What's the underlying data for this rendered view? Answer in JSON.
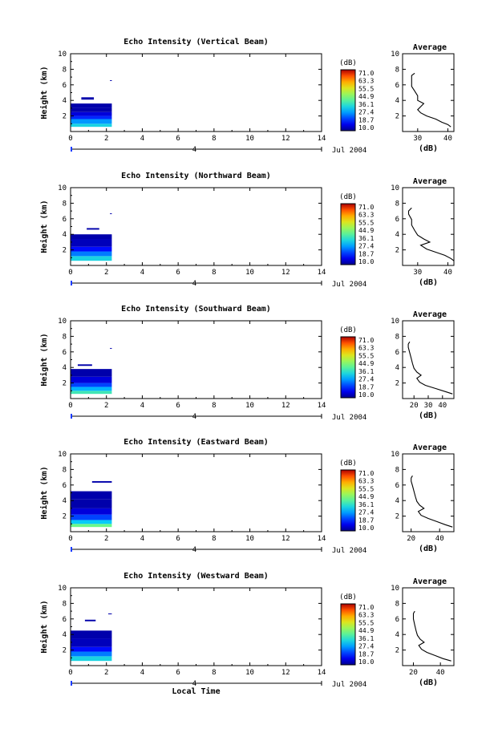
{
  "chart_data": [
    {
      "type": "heatmap",
      "title": "Echo Intensity (Vertical Beam)",
      "xlabel": "",
      "ylabel": "Height (km)",
      "xlim": [
        0,
        14
      ],
      "ylim": [
        0,
        10
      ],
      "x_ticks": [
        "0",
        "2",
        "4",
        "6",
        "8",
        "10",
        "12",
        "14"
      ],
      "y_ticks": [
        "2",
        "4",
        "6",
        "8",
        "10"
      ],
      "day_marker": "4",
      "date_label": "Jul 2004",
      "colorbar": {
        "unit": "(dB)",
        "ticks": [
          "71.0",
          "63.3",
          "55.5",
          "44.9",
          "36.1",
          "27.4",
          "18.7",
          "10.0"
        ]
      },
      "data_extent_hours": [
        0,
        2.3
      ],
      "cells": [
        {
          "t0": 0.0,
          "t1": 2.3,
          "h0": 0.6,
          "h1": 1.0,
          "db": 34
        },
        {
          "t0": 0.0,
          "t1": 2.3,
          "h0": 1.0,
          "h1": 1.6,
          "db": 28
        },
        {
          "t0": 0.0,
          "t1": 2.3,
          "h0": 1.6,
          "h1": 2.0,
          "db": 20
        },
        {
          "t0": 0.0,
          "t1": 2.3,
          "h0": 2.0,
          "h1": 2.5,
          "db": 15
        },
        {
          "t0": 0.0,
          "t1": 2.3,
          "h0": 2.5,
          "h1": 3.0,
          "db": 12
        },
        {
          "t0": 0.0,
          "t1": 2.3,
          "h0": 3.0,
          "h1": 3.6,
          "db": 12
        },
        {
          "t0": 0.6,
          "t1": 1.3,
          "h0": 4.1,
          "h1": 4.4,
          "db": 12
        },
        {
          "t0": 2.2,
          "t1": 2.3,
          "h0": 6.5,
          "h1": 6.6,
          "db": 12
        }
      ],
      "average": {
        "title": "Average",
        "xlabel": "(dB)",
        "xlim": [
          25,
          42
        ],
        "x_ticks": [
          "30",
          "40"
        ],
        "ylim": [
          0,
          10
        ],
        "y_ticks": [
          "2",
          "4",
          "6",
          "8",
          "10"
        ],
        "profile": {
          "db": [
            41,
            40,
            38,
            36,
            33,
            31,
            30,
            31,
            32,
            30,
            30,
            29,
            28,
            28,
            28,
            28,
            29
          ],
          "height": [
            0.6,
            0.9,
            1.2,
            1.6,
            2.0,
            2.4,
            2.8,
            3.2,
            3.6,
            4.0,
            4.6,
            5.2,
            5.8,
            6.3,
            6.8,
            7.2,
            7.5
          ]
        }
      }
    },
    {
      "type": "heatmap",
      "title": "Echo Intensity (Northward Beam)",
      "xlabel": "",
      "ylabel": "Height (km)",
      "xlim": [
        0,
        14
      ],
      "ylim": [
        0,
        10
      ],
      "x_ticks": [
        "0",
        "2",
        "4",
        "6",
        "8",
        "10",
        "12",
        "14"
      ],
      "y_ticks": [
        "2",
        "4",
        "6",
        "8",
        "10"
      ],
      "day_marker": "4",
      "date_label": "Jul 2004",
      "colorbar": {
        "unit": "(dB)",
        "ticks": [
          "71.0",
          "63.3",
          "55.5",
          "44.9",
          "36.1",
          "27.4",
          "18.7",
          "10.0"
        ]
      },
      "data_extent_hours": [
        0,
        2.3
      ],
      "cells": [
        {
          "t0": 0.0,
          "t1": 2.3,
          "h0": 0.6,
          "h1": 1.2,
          "db": 34
        },
        {
          "t0": 0.0,
          "t1": 2.3,
          "h0": 1.2,
          "h1": 1.8,
          "db": 26
        },
        {
          "t0": 0.0,
          "t1": 2.3,
          "h0": 1.8,
          "h1": 2.4,
          "db": 18
        },
        {
          "t0": 0.0,
          "t1": 2.3,
          "h0": 2.4,
          "h1": 3.4,
          "db": 13
        },
        {
          "t0": 0.0,
          "t1": 2.3,
          "h0": 3.4,
          "h1": 4.0,
          "db": 12
        },
        {
          "t0": 0.9,
          "t1": 1.6,
          "h0": 4.6,
          "h1": 4.8,
          "db": 12
        },
        {
          "t0": 2.2,
          "t1": 2.3,
          "h0": 6.6,
          "h1": 6.7,
          "db": 12
        }
      ],
      "average": {
        "title": "Average",
        "xlabel": "(dB)",
        "xlim": [
          25,
          42
        ],
        "x_ticks": [
          "30",
          "40"
        ],
        "ylim": [
          0,
          10
        ],
        "y_ticks": [
          "2",
          "4",
          "6",
          "8",
          "10"
        ],
        "profile": {
          "db": [
            42,
            41,
            39,
            36,
            33,
            31,
            34,
            32,
            30,
            29,
            28,
            28,
            27,
            27,
            28
          ],
          "height": [
            0.6,
            0.9,
            1.3,
            1.7,
            2.1,
            2.6,
            3.0,
            3.4,
            3.9,
            4.5,
            5.2,
            5.9,
            6.6,
            7.0,
            7.4
          ]
        }
      }
    },
    {
      "type": "heatmap",
      "title": "Echo Intensity (Southward Beam)",
      "xlabel": "",
      "ylabel": "Height (km)",
      "xlim": [
        0,
        14
      ],
      "ylim": [
        0,
        10
      ],
      "x_ticks": [
        "0",
        "2",
        "4",
        "6",
        "8",
        "10",
        "12",
        "14"
      ],
      "y_ticks": [
        "2",
        "4",
        "6",
        "8",
        "10"
      ],
      "day_marker": "4",
      "date_label": "Jul 2004",
      "colorbar": {
        "unit": "(dB)",
        "ticks": [
          "71.0",
          "63.3",
          "55.5",
          "44.9",
          "36.1",
          "27.4",
          "18.7",
          "10.0"
        ]
      },
      "data_extent_hours": [
        0,
        2.3
      ],
      "cells": [
        {
          "t0": 0.0,
          "t1": 2.3,
          "h0": 0.6,
          "h1": 1.0,
          "db": 38
        },
        {
          "t0": 0.0,
          "t1": 2.3,
          "h0": 1.0,
          "h1": 1.5,
          "db": 30
        },
        {
          "t0": 0.0,
          "t1": 2.3,
          "h0": 1.5,
          "h1": 2.0,
          "db": 22
        },
        {
          "t0": 0.0,
          "t1": 2.3,
          "h0": 2.0,
          "h1": 2.8,
          "db": 15
        },
        {
          "t0": 0.0,
          "t1": 2.3,
          "h0": 2.8,
          "h1": 3.8,
          "db": 12
        },
        {
          "t0": 0.4,
          "t1": 1.2,
          "h0": 4.2,
          "h1": 4.4,
          "db": 12
        },
        {
          "t0": 2.2,
          "t1": 2.3,
          "h0": 6.4,
          "h1": 6.5,
          "db": 12
        }
      ],
      "average": {
        "title": "Average",
        "xlabel": "(dB)",
        "xlim": [
          12,
          48
        ],
        "x_ticks": [
          "20",
          "30",
          "40"
        ],
        "ylim": [
          0,
          10
        ],
        "y_ticks": [
          "2",
          "4",
          "6",
          "8",
          "10"
        ],
        "profile": {
          "db": [
            47,
            42,
            35,
            28,
            24,
            22,
            25,
            22,
            20,
            19,
            18,
            17,
            16,
            16,
            17
          ],
          "height": [
            0.6,
            0.9,
            1.3,
            1.7,
            2.1,
            2.6,
            3.0,
            3.4,
            3.9,
            4.5,
            5.2,
            5.9,
            6.6,
            7.0,
            7.3
          ]
        }
      }
    },
    {
      "type": "heatmap",
      "title": "Echo Intensity (Eastward Beam)",
      "xlabel": "",
      "ylabel": "Height (km)",
      "xlim": [
        0,
        14
      ],
      "ylim": [
        0,
        10
      ],
      "x_ticks": [
        "0",
        "2",
        "4",
        "6",
        "8",
        "10",
        "12",
        "14"
      ],
      "y_ticks": [
        "2",
        "4",
        "6",
        "8",
        "10"
      ],
      "day_marker": "4",
      "date_label": "Jul 2004",
      "colorbar": {
        "unit": "(dB)",
        "ticks": [
          "71.0",
          "63.3",
          "55.5",
          "44.9",
          "36.1",
          "27.4",
          "18.7",
          "10.0"
        ]
      },
      "data_extent_hours": [
        0,
        2.3
      ],
      "cells": [
        {
          "t0": 0.0,
          "t1": 2.3,
          "h0": 0.6,
          "h1": 1.0,
          "db": 42
        },
        {
          "t0": 0.0,
          "t1": 2.3,
          "h0": 1.0,
          "h1": 1.5,
          "db": 32
        },
        {
          "t0": 0.0,
          "t1": 2.3,
          "h0": 1.5,
          "h1": 2.2,
          "db": 22
        },
        {
          "t0": 0.0,
          "t1": 2.3,
          "h0": 2.2,
          "h1": 3.0,
          "db": 15
        },
        {
          "t0": 0.0,
          "t1": 2.3,
          "h0": 3.0,
          "h1": 4.2,
          "db": 12
        },
        {
          "t0": 0.0,
          "t1": 2.3,
          "h0": 4.2,
          "h1": 5.2,
          "db": 12
        },
        {
          "t0": 1.2,
          "t1": 2.3,
          "h0": 6.3,
          "h1": 6.5,
          "db": 12
        }
      ],
      "average": {
        "title": "Average",
        "xlabel": "(dB)",
        "xlim": [
          14,
          50
        ],
        "x_ticks": [
          "20",
          "40"
        ],
        "ylim": [
          0,
          10
        ],
        "y_ticks": [
          "2",
          "4",
          "6",
          "8",
          "10"
        ],
        "profile": {
          "db": [
            49,
            44,
            38,
            32,
            27,
            25,
            29,
            26,
            24,
            23,
            22,
            21,
            20,
            20,
            21
          ],
          "height": [
            0.6,
            0.9,
            1.3,
            1.7,
            2.1,
            2.6,
            3.0,
            3.4,
            3.9,
            4.5,
            5.2,
            5.9,
            6.5,
            6.9,
            7.2
          ]
        }
      }
    },
    {
      "type": "heatmap",
      "title": "Echo Intensity (Westward Beam)",
      "xlabel": "Local Time",
      "ylabel": "Height (km)",
      "xlim": [
        0,
        14
      ],
      "ylim": [
        0,
        10
      ],
      "x_ticks": [
        "0",
        "2",
        "4",
        "6",
        "8",
        "10",
        "12",
        "14"
      ],
      "y_ticks": [
        "2",
        "4",
        "6",
        "8",
        "10"
      ],
      "day_marker": "4",
      "date_label": "Jul 2004",
      "colorbar": {
        "unit": "(dB)",
        "ticks": [
          "71.0",
          "63.3",
          "55.5",
          "44.9",
          "36.1",
          "27.4",
          "18.7",
          "10.0"
        ]
      },
      "data_extent_hours": [
        0,
        2.3
      ],
      "cells": [
        {
          "t0": 0.0,
          "t1": 2.3,
          "h0": 0.6,
          "h1": 1.2,
          "db": 34
        },
        {
          "t0": 0.0,
          "t1": 2.3,
          "h0": 1.2,
          "h1": 1.8,
          "db": 26
        },
        {
          "t0": 0.0,
          "t1": 2.3,
          "h0": 1.8,
          "h1": 2.4,
          "db": 18
        },
        {
          "t0": 0.0,
          "t1": 2.3,
          "h0": 2.4,
          "h1": 3.5,
          "db": 13
        },
        {
          "t0": 0.0,
          "t1": 2.3,
          "h0": 3.5,
          "h1": 4.5,
          "db": 12
        },
        {
          "t0": 0.8,
          "t1": 1.4,
          "h0": 5.7,
          "h1": 5.9,
          "db": 12
        },
        {
          "t0": 2.1,
          "t1": 2.3,
          "h0": 6.6,
          "h1": 6.7,
          "db": 12
        }
      ],
      "average": {
        "title": "Average",
        "xlabel": "(dB)",
        "xlim": [
          12,
          50
        ],
        "x_ticks": [
          "20",
          "40"
        ],
        "ylim": [
          0,
          10
        ],
        "y_ticks": [
          "2",
          "4",
          "6",
          "8",
          "10"
        ],
        "profile": {
          "db": [
            48,
            42,
            36,
            30,
            26,
            24,
            28,
            25,
            23,
            22,
            21,
            20,
            20,
            21
          ],
          "height": [
            0.6,
            0.9,
            1.3,
            1.7,
            2.1,
            2.6,
            3.0,
            3.4,
            3.9,
            4.5,
            5.2,
            6.0,
            6.7,
            7.0
          ]
        }
      }
    }
  ]
}
